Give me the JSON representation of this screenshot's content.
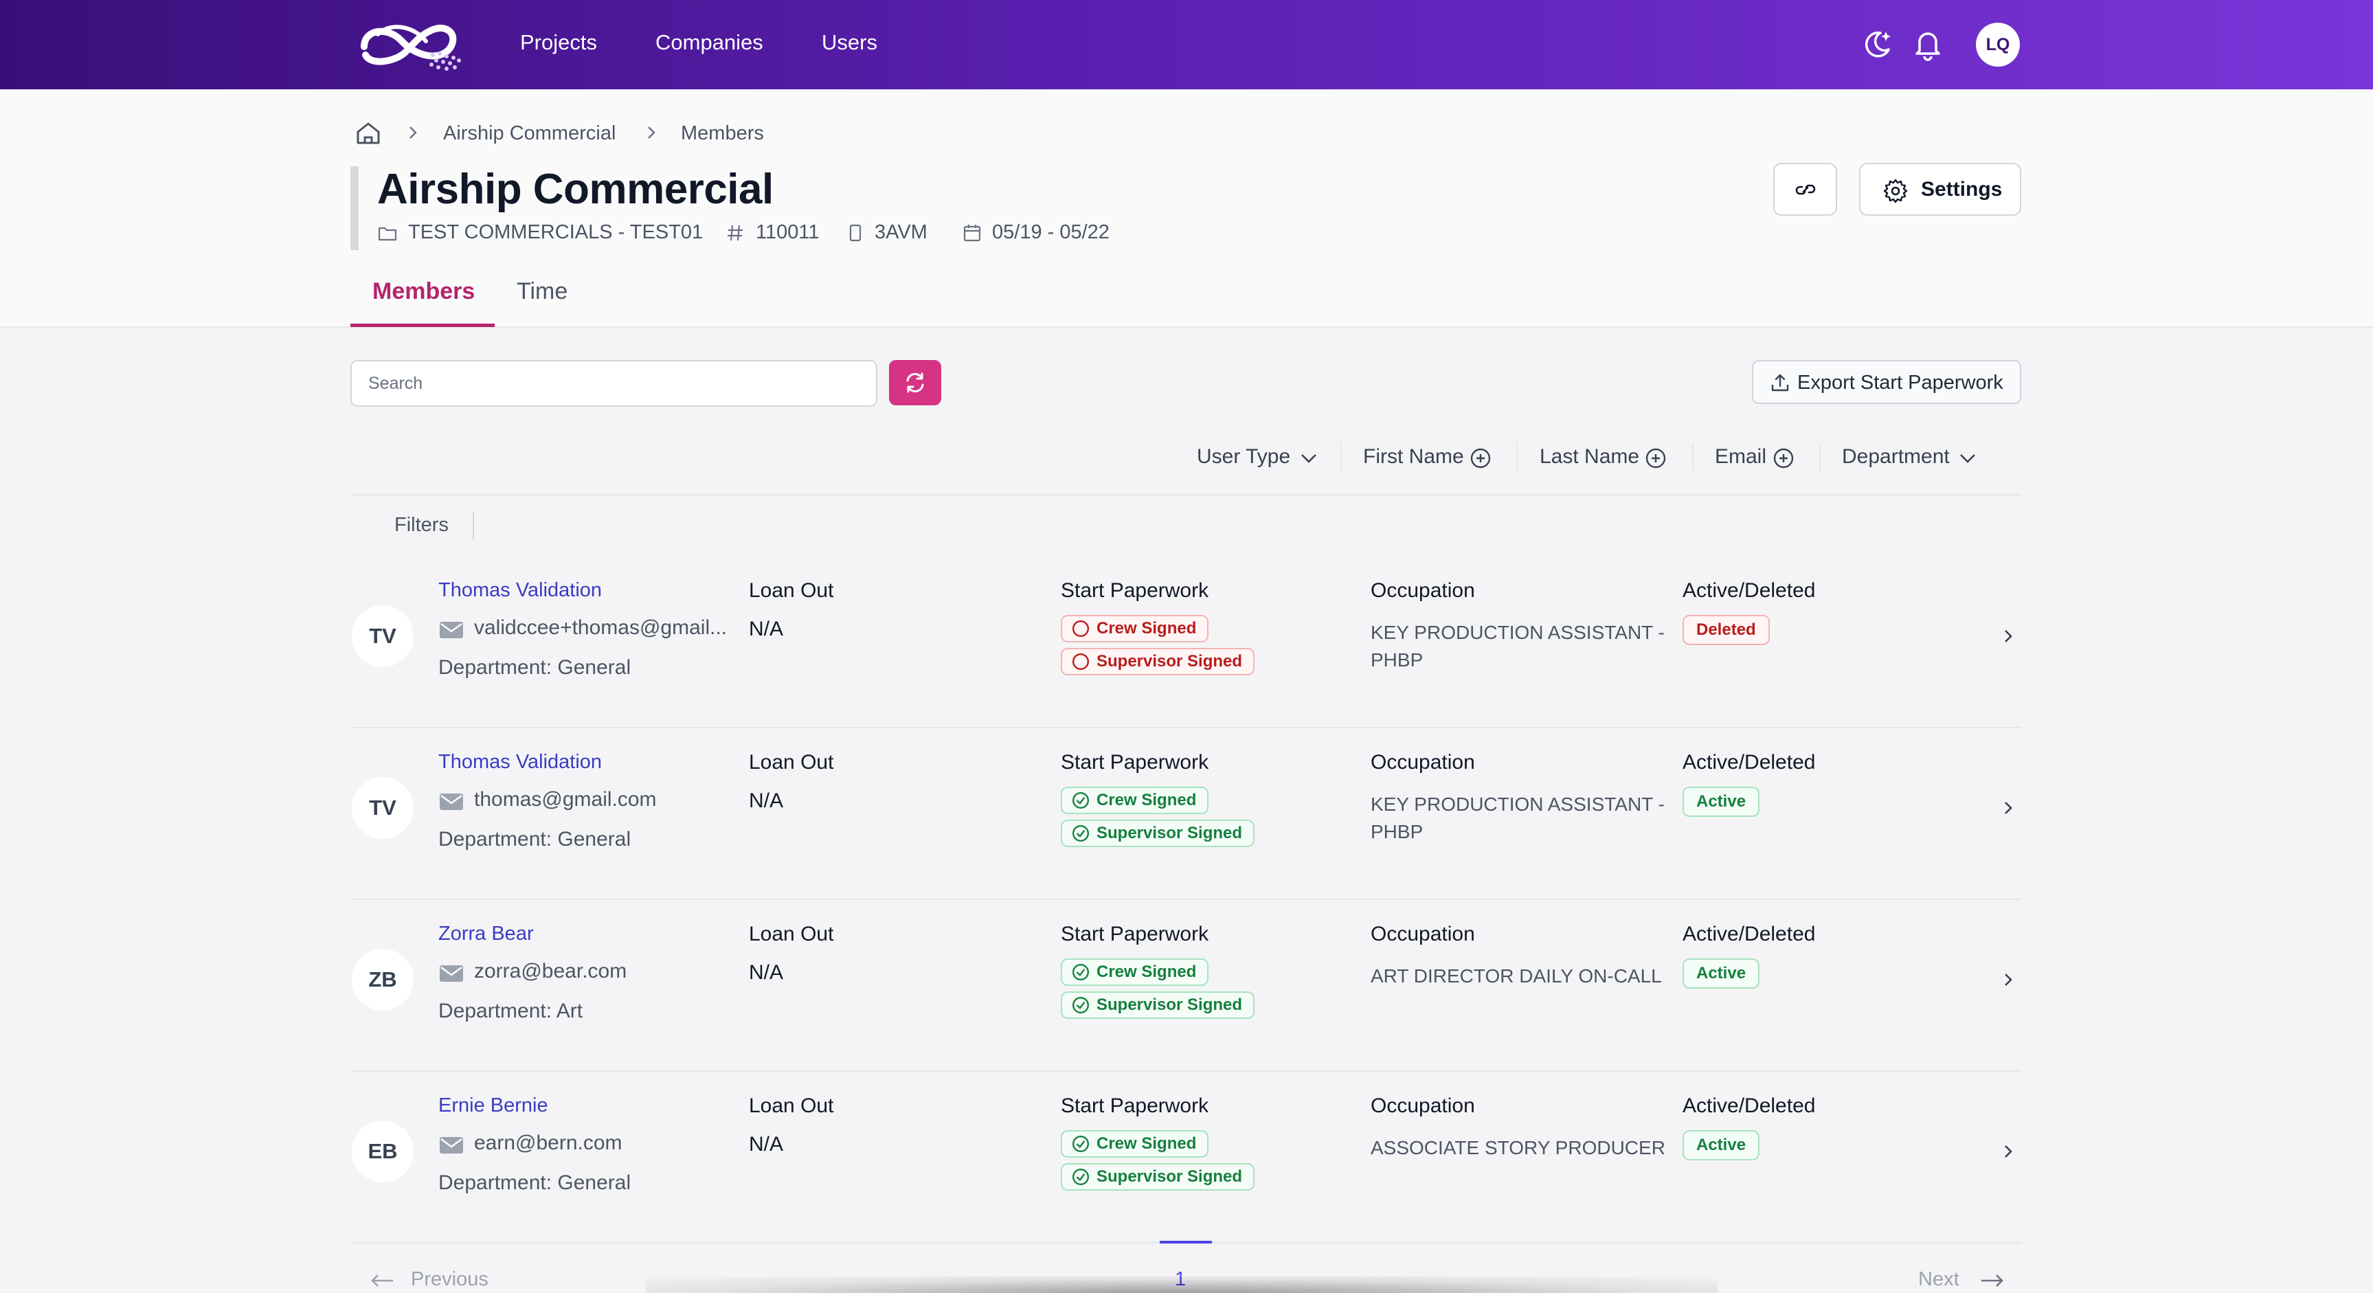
{
  "nav": {
    "links": [
      "Projects",
      "Companies",
      "Users"
    ],
    "user_initials": "LQ",
    "icons": [
      "moon-star-icon",
      "bell-icon"
    ],
    "gradient_colors": [
      "#3a0e78",
      "#7a34d8"
    ]
  },
  "breadcrumb": {
    "items": [
      "Airship Commercial",
      "Members"
    ]
  },
  "project": {
    "title": "Airship Commercial",
    "company": "TEST COMMERCIALS - TEST01",
    "number": "110011",
    "code": "3AVM",
    "dates": "05/19 - 05/22"
  },
  "header_buttons": {
    "settings_label": "Settings"
  },
  "tabs": [
    {
      "label": "Members",
      "active": true
    },
    {
      "label": "Time",
      "active": false
    }
  ],
  "toolbar": {
    "search_placeholder": "Search",
    "export_label": "Export Start Paperwork"
  },
  "columns": [
    "User Type",
    "First Name",
    "Last Name",
    "Email",
    "Department"
  ],
  "filters_label": "Filters",
  "members": [
    {
      "initials": "TV",
      "name": "Thomas Validation",
      "email": "validccee+thomas@gmail...",
      "department": "Department: General",
      "loan_out_label": "Loan Out",
      "loan_out": "N/A",
      "paperwork_label": "Start Paperwork",
      "crew_signed": "Crew Signed",
      "supervisor_signed": "Supervisor Signed",
      "signed": false,
      "occupation_label": "Occupation",
      "occupation": "KEY PRODUCTION ASSISTANT - PHBP",
      "status_label": "Active/Deleted",
      "status": "Deleted"
    },
    {
      "initials": "TV",
      "name": "Thomas Validation",
      "email": "thomas@gmail.com",
      "department": "Department: General",
      "loan_out_label": "Loan Out",
      "loan_out": "N/A",
      "paperwork_label": "Start Paperwork",
      "crew_signed": "Crew Signed",
      "supervisor_signed": "Supervisor Signed",
      "signed": true,
      "occupation_label": "Occupation",
      "occupation": "KEY PRODUCTION ASSISTANT - PHBP",
      "status_label": "Active/Deleted",
      "status": "Active"
    },
    {
      "initials": "ZB",
      "name": "Zorra Bear",
      "email": "zorra@bear.com",
      "department": "Department: Art",
      "loan_out_label": "Loan Out",
      "loan_out": "N/A",
      "paperwork_label": "Start Paperwork",
      "crew_signed": "Crew Signed",
      "supervisor_signed": "Supervisor Signed",
      "signed": true,
      "occupation_label": "Occupation",
      "occupation": "ART DIRECTOR DAILY ON-CALL",
      "status_label": "Active/Deleted",
      "status": "Active"
    },
    {
      "initials": "EB",
      "name": "Ernie Bernie",
      "email": "earn@bern.com",
      "department": "Department: General",
      "loan_out_label": "Loan Out",
      "loan_out": "N/A",
      "paperwork_label": "Start Paperwork",
      "crew_signed": "Crew Signed",
      "supervisor_signed": "Supervisor Signed",
      "signed": true,
      "occupation_label": "Occupation",
      "occupation": "ASSOCIATE STORY PRODUCER",
      "status_label": "Active/Deleted",
      "status": "Active"
    }
  ],
  "pagination": {
    "previous": "Previous",
    "next": "Next",
    "current_page": "1"
  },
  "colors": {
    "accent": "#b5246b",
    "refresh_button": "#d63384",
    "link": "#3b3bc4",
    "deleted": "#b91c1c",
    "active": "#15803d"
  }
}
